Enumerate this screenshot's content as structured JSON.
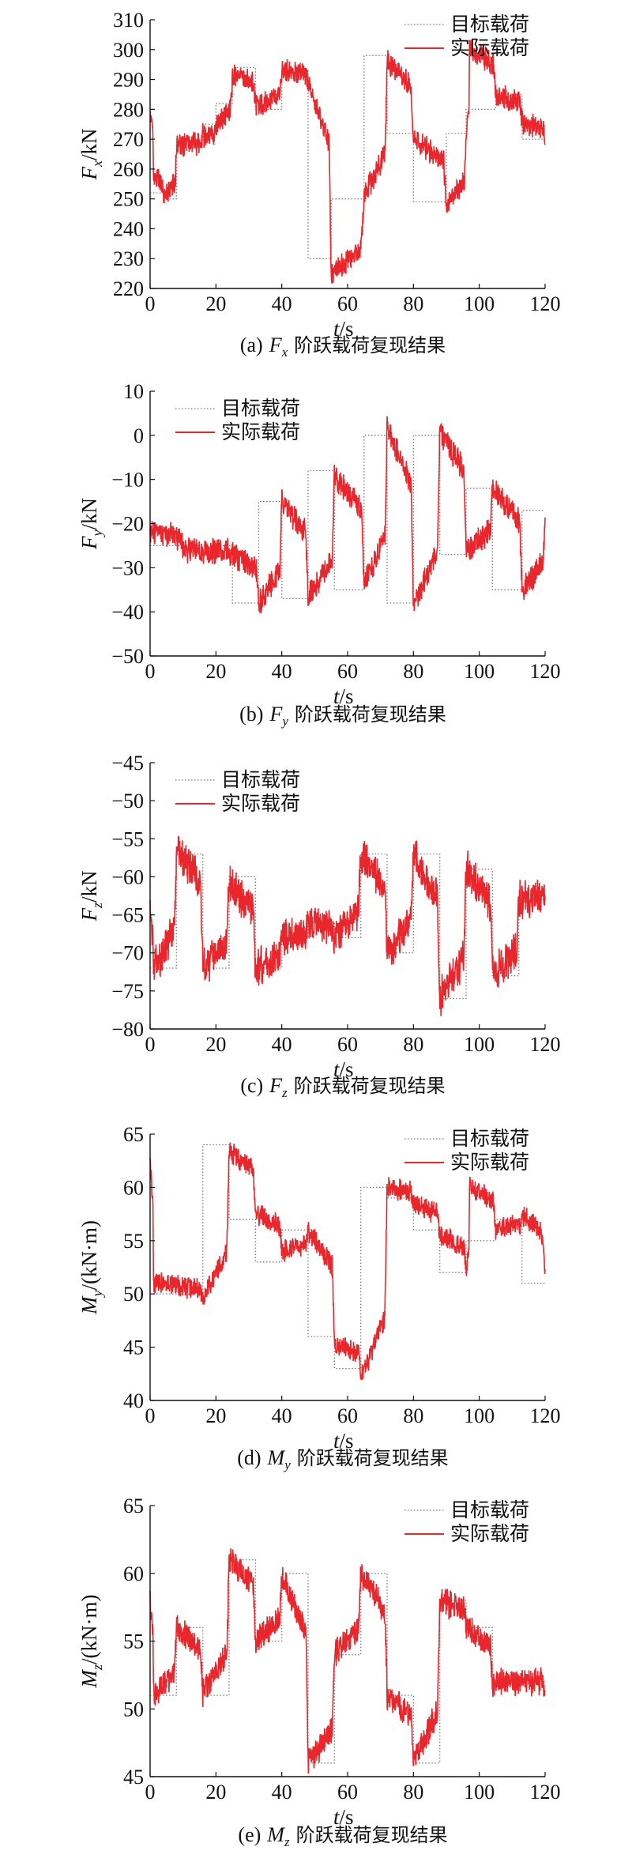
{
  "colors": {
    "target": "#7a7a7a",
    "actual": "#e8262c",
    "axis": "#111111"
  },
  "chart_data": [
    {
      "type": "line",
      "title": "",
      "caption_prefix": "(a)",
      "caption_var": "F",
      "caption_sub": "x",
      "caption_text": "阶跃载荷复现结果",
      "ylabel_var": "F",
      "ylabel_sub": "x",
      "ylabel_unit": "/kN",
      "xlabel_var": "t",
      "xlabel_unit": "/s",
      "xlim": [
        0,
        120
      ],
      "ylim": [
        220,
        310
      ],
      "xticks": [
        0,
        20,
        40,
        60,
        80,
        100,
        120
      ],
      "yticks": [
        220,
        230,
        240,
        250,
        260,
        270,
        280,
        290,
        300,
        310
      ],
      "legend_position": "top-right",
      "grid": false,
      "series": [
        {
          "name": "目标载荷",
          "style": "dotted",
          "x": [
            0,
            4,
            4,
            8,
            8,
            16,
            16,
            20,
            20,
            25,
            25,
            32,
            32,
            40,
            40,
            48,
            48,
            55,
            55,
            65,
            65,
            72,
            72,
            80,
            80,
            90,
            90,
            96,
            96,
            105,
            105,
            113,
            113,
            120
          ],
          "y": [
            252,
            252,
            250,
            250,
            270,
            270,
            275,
            275,
            282,
            282,
            294,
            294,
            280,
            280,
            293,
            293,
            230,
            230,
            250,
            250,
            298,
            298,
            272,
            272,
            249,
            249,
            272,
            272,
            280,
            280,
            285,
            285,
            270,
            270
          ]
        },
        {
          "name": "实际载荷",
          "style": "solid",
          "x": [
            0,
            1,
            4,
            8,
            16,
            20,
            25,
            32,
            40,
            48,
            55,
            65,
            72,
            80,
            90,
            96,
            97,
            105,
            113,
            120
          ],
          "y": [
            278,
            258,
            250,
            268,
            271,
            275,
            292,
            281,
            293,
            289,
            225,
            251,
            296,
            270,
            248,
            272,
            300,
            285,
            276,
            268
          ],
          "noise": 3.5
        }
      ]
    },
    {
      "type": "line",
      "title": "",
      "caption_prefix": "(b)",
      "caption_var": "F",
      "caption_sub": "y",
      "caption_text": "阶跃载荷复现结果",
      "ylabel_var": "F",
      "ylabel_sub": "y",
      "ylabel_unit": "/kN",
      "xlabel_var": "t",
      "xlabel_unit": "/s",
      "xlim": [
        0,
        120
      ],
      "ylim": [
        -50,
        10
      ],
      "xticks": [
        0,
        20,
        40,
        60,
        80,
        100,
        120
      ],
      "yticks": [
        -50,
        -40,
        -30,
        -20,
        -10,
        0,
        10
      ],
      "legend_position": "top-left",
      "grid": false,
      "series": [
        {
          "name": "目标载荷",
          "style": "dotted",
          "x": [
            0,
            25,
            25,
            33,
            33,
            40,
            40,
            48,
            48,
            56,
            56,
            65,
            65,
            72,
            72,
            80,
            80,
            88,
            88,
            96,
            96,
            104,
            104,
            113,
            113,
            120
          ],
          "y": [
            -25,
            -25,
            -38,
            -38,
            -15,
            -15,
            -37,
            -37,
            -8,
            -8,
            -35,
            -35,
            0,
            0,
            -38,
            -38,
            0,
            0,
            -27,
            -27,
            -12,
            -12,
            -35,
            -35,
            -17,
            -17
          ]
        },
        {
          "name": "实际载荷",
          "style": "solid",
          "x": [
            0,
            10,
            25,
            33,
            40,
            48,
            56,
            65,
            72,
            80,
            88,
            96,
            104,
            113,
            120
          ],
          "y": [
            -22,
            -26,
            -27,
            -38,
            -15,
            -37,
            -9,
            -34,
            2,
            -39,
            1,
            -26,
            -12,
            -35,
            -16
          ],
          "noise": 2.6
        }
      ]
    },
    {
      "type": "line",
      "title": "",
      "caption_prefix": "(c)",
      "caption_var": "F",
      "caption_sub": "z",
      "caption_text": "阶跃载荷复现结果",
      "ylabel_var": "F",
      "ylabel_sub": "z",
      "ylabel_unit": "/kN",
      "xlabel_var": "t",
      "xlabel_unit": "/s",
      "xlim": [
        0,
        120
      ],
      "ylim": [
        -80,
        -45
      ],
      "xticks": [
        0,
        20,
        40,
        60,
        80,
        100,
        120
      ],
      "yticks": [
        -80,
        -75,
        -70,
        -65,
        -60,
        -55,
        -50,
        -45
      ],
      "legend_position": "top-left",
      "grid": false,
      "series": [
        {
          "name": "目标载荷",
          "style": "dotted",
          "x": [
            0,
            8,
            8,
            16,
            16,
            24,
            24,
            32,
            32,
            40,
            40,
            48,
            48,
            56,
            56,
            64,
            64,
            72,
            72,
            80,
            80,
            88,
            88,
            96,
            96,
            104,
            104,
            112,
            112,
            120
          ],
          "y": [
            -72,
            -72,
            -57,
            -57,
            -72,
            -72,
            -60,
            -60,
            -72,
            -72,
            -68,
            -68,
            -66,
            -66,
            -68,
            -68,
            -57,
            -57,
            -70,
            -70,
            -57,
            -57,
            -76,
            -76,
            -59,
            -59,
            -73,
            -73,
            -63,
            -63
          ]
        },
        {
          "name": "实际载荷",
          "style": "solid",
          "x": [
            0,
            1,
            8,
            16,
            24,
            32,
            40,
            48,
            56,
            64,
            72,
            80,
            88,
            96,
            104,
            112,
            120
          ],
          "y": [
            -65,
            -72,
            -56,
            -72,
            -61,
            -72,
            -68,
            -66,
            -68,
            -57,
            -70,
            -57,
            -76,
            -59,
            -73,
            -63,
            -63
          ],
          "noise": 2.2
        }
      ]
    },
    {
      "type": "line",
      "title": "",
      "caption_prefix": "(d)",
      "caption_var": "M",
      "caption_sub": "y",
      "caption_text": "阶跃载荷复现结果",
      "ylabel_var": "M",
      "ylabel_sub": "y",
      "ylabel_unit": "/(kN·m)",
      "xlabel_var": "t",
      "xlabel_unit": "/s",
      "xlim": [
        0,
        120
      ],
      "ylim": [
        40,
        65
      ],
      "xticks": [
        0,
        20,
        40,
        60,
        80,
        100,
        120
      ],
      "yticks": [
        40,
        45,
        50,
        55,
        60,
        65
      ],
      "legend_position": "top-right",
      "grid": false,
      "series": [
        {
          "name": "目标载荷",
          "style": "dotted",
          "x": [
            0,
            16,
            16,
            24,
            24,
            32,
            32,
            40,
            40,
            48,
            48,
            56,
            56,
            64,
            64,
            72,
            72,
            80,
            80,
            88,
            88,
            96,
            96,
            105,
            105,
            113,
            113,
            120
          ],
          "y": [
            50,
            50,
            64,
            64,
            57,
            57,
            53,
            53,
            56,
            56,
            46,
            46,
            43,
            43,
            60,
            60,
            59,
            59,
            56,
            56,
            52,
            52,
            55,
            55,
            57,
            57,
            51,
            51
          ]
        },
        {
          "name": "实际载荷",
          "style": "solid",
          "x": [
            0,
            1,
            16,
            24,
            32,
            40,
            48,
            56,
            64,
            72,
            80,
            88,
            96,
            97,
            105,
            113,
            120
          ],
          "y": [
            62,
            51,
            49.5,
            63.5,
            57.5,
            54,
            56,
            45.5,
            42,
            60,
            58.5,
            55.5,
            52,
            60,
            56,
            57.5,
            51.5
          ],
          "noise": 0.9
        }
      ]
    },
    {
      "type": "line",
      "title": "",
      "caption_prefix": "(e)",
      "caption_var": "M",
      "caption_sub": "z",
      "caption_text": "阶跃载荷复现结果",
      "ylabel_var": "M",
      "ylabel_sub": "z",
      "ylabel_unit": "/(kN·m)",
      "xlabel_var": "t",
      "xlabel_unit": "/s",
      "xlim": [
        0,
        120
      ],
      "ylim": [
        45,
        65
      ],
      "xticks": [
        0,
        20,
        40,
        60,
        80,
        100,
        120
      ],
      "yticks": [
        45,
        50,
        55,
        60,
        65
      ],
      "legend_position": "top-right",
      "grid": false,
      "series": [
        {
          "name": "目标载荷",
          "style": "dotted",
          "x": [
            0,
            8,
            8,
            16,
            16,
            24,
            24,
            32,
            32,
            40,
            40,
            48,
            48,
            56,
            56,
            64,
            64,
            72,
            72,
            80,
            80,
            88,
            88,
            96,
            96,
            104,
            104,
            112,
            112,
            120
          ],
          "y": [
            51,
            51,
            56,
            56,
            51,
            51,
            61,
            61,
            55,
            55,
            60,
            60,
            46,
            46,
            54,
            54,
            60,
            60,
            51,
            51,
            46,
            46,
            58,
            58,
            56,
            56,
            52,
            52,
            52,
            52
          ]
        },
        {
          "name": "实际载荷",
          "style": "solid",
          "x": [
            0,
            1,
            8,
            16,
            24,
            32,
            40,
            48,
            56,
            64,
            72,
            80,
            88,
            96,
            104,
            112,
            120
          ],
          "y": [
            58,
            51,
            56,
            51,
            61,
            55,
            60,
            46,
            54,
            60,
            51,
            46,
            58,
            56,
            52,
            52,
            52
          ],
          "noise": 0.9
        }
      ]
    }
  ]
}
